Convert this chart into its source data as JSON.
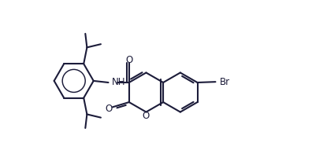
{
  "bg_color": "#ffffff",
  "line_color": "#1c1c3a",
  "line_width": 1.5,
  "font_size": 8.5,
  "xlim": [
    0,
    8.0
  ],
  "ylim": [
    0.5,
    5.5
  ]
}
